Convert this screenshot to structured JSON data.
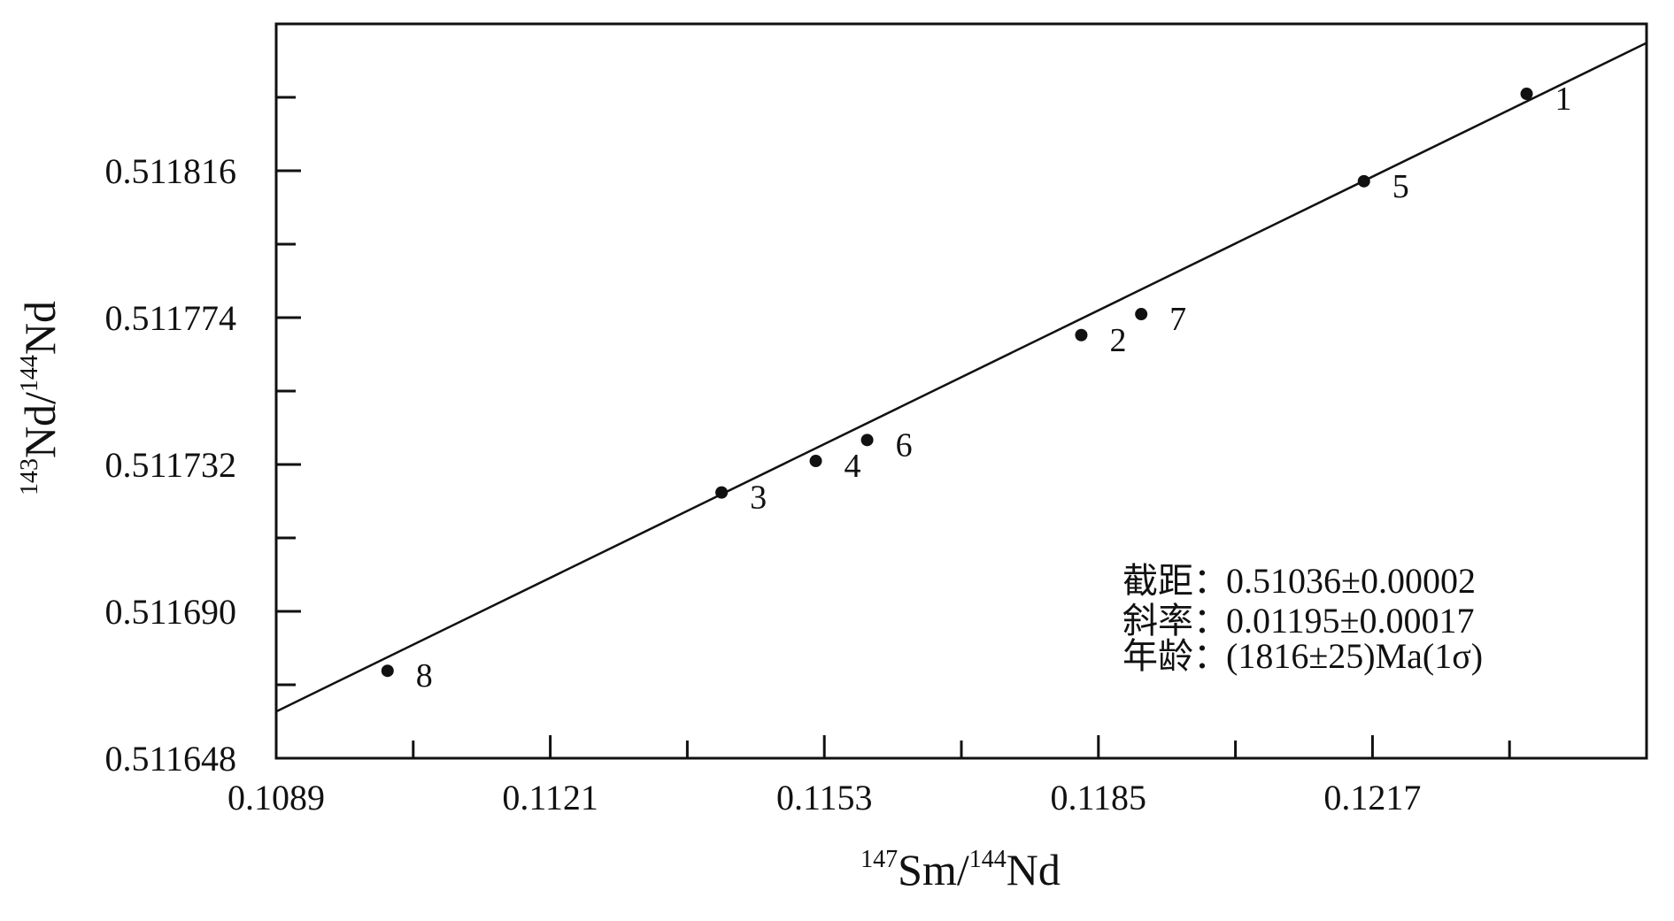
{
  "chart_data": {
    "type": "scatter",
    "xlabel": {
      "pre_sup": "147",
      "main": "Sm/",
      "mid_sup": "144",
      "end": "Nd"
    },
    "ylabel": {
      "pre_sup": "143",
      "main": "Nd/",
      "mid_sup": "144",
      "end": "Nd"
    },
    "xlim": [
      0.1089,
      0.1249
    ],
    "ylim": [
      0.511648,
      0.511858
    ],
    "x_ticks": [
      0.1089,
      0.1121,
      0.1153,
      0.1185,
      0.1217
    ],
    "x_tick_labels": [
      "0.1089",
      "0.1121",
      "0.1153",
      "0.1185",
      "0.1217"
    ],
    "y_ticks": [
      0.511648,
      0.51169,
      0.511732,
      0.511774,
      0.511816
    ],
    "y_tick_labels": [
      "0.511648",
      "0.511690",
      "0.511732",
      "0.511774",
      "0.511816"
    ],
    "grid": false,
    "points": [
      {
        "label": "1",
        "x": 0.1235,
        "y": 0.511838
      },
      {
        "label": "2",
        "x": 0.1183,
        "y": 0.511769
      },
      {
        "label": "3",
        "x": 0.1141,
        "y": 0.511724
      },
      {
        "label": "4",
        "x": 0.1152,
        "y": 0.511733
      },
      {
        "label": "5",
        "x": 0.1216,
        "y": 0.511813
      },
      {
        "label": "6",
        "x": 0.1158,
        "y": 0.511739
      },
      {
        "label": "7",
        "x": 0.119,
        "y": 0.511775
      },
      {
        "label": "8",
        "x": 0.1102,
        "y": 0.511673
      }
    ],
    "fit_line": {
      "slope": 0.01195,
      "intercept": 0.51036
    },
    "annotation": [
      {
        "key": "截距",
        "sep": "：",
        "value": "0.51036±0.00002"
      },
      {
        "key": "斜率",
        "sep": "：",
        "value": "0.01195±0.00017"
      },
      {
        "key": "年龄",
        "sep": "：",
        "value": "(1816±25)Ma(1σ)"
      }
    ]
  }
}
